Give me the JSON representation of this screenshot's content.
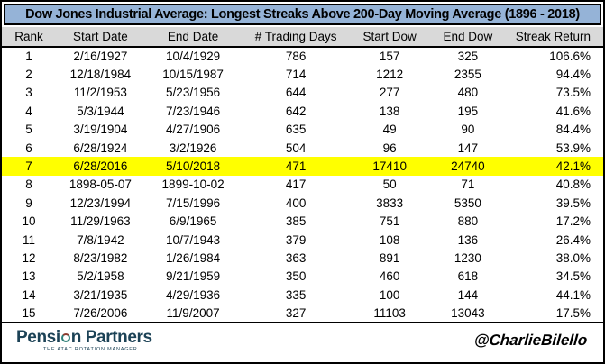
{
  "title": "Dow Jones Industrial Average: Longest Streaks Above 200-Day Moving Average (1896 - 2018)",
  "chart_data": {
    "type": "table",
    "title": "Dow Jones Industrial Average: Longest Streaks Above 200-Day Moving Average (1896 - 2018)",
    "columns": [
      "Rank",
      "Start Date",
      "End Date",
      "# Trading Days",
      "Start Dow",
      "End Dow",
      "Streak Return"
    ],
    "rows": [
      [
        "1",
        "2/16/1927",
        "10/4/1929",
        "786",
        "157",
        "325",
        "106.6%"
      ],
      [
        "2",
        "12/18/1984",
        "10/15/1987",
        "714",
        "1212",
        "2355",
        "94.4%"
      ],
      [
        "3",
        "11/2/1953",
        "5/23/1956",
        "644",
        "277",
        "480",
        "73.5%"
      ],
      [
        "4",
        "5/3/1944",
        "7/23/1946",
        "642",
        "138",
        "195",
        "41.6%"
      ],
      [
        "5",
        "3/19/1904",
        "4/27/1906",
        "635",
        "49",
        "90",
        "84.4%"
      ],
      [
        "6",
        "6/28/1924",
        "3/2/1926",
        "504",
        "96",
        "147",
        "53.9%"
      ],
      [
        "7",
        "6/28/2016",
        "5/10/2018",
        "471",
        "17410",
        "24740",
        "42.1%"
      ],
      [
        "8",
        "1898-05-07",
        "1899-10-02",
        "417",
        "50",
        "71",
        "40.8%"
      ],
      [
        "9",
        "12/23/1994",
        "7/15/1996",
        "400",
        "3833",
        "5350",
        "39.5%"
      ],
      [
        "10",
        "11/29/1963",
        "6/9/1965",
        "385",
        "751",
        "880",
        "17.2%"
      ],
      [
        "11",
        "7/8/1942",
        "10/7/1943",
        "379",
        "108",
        "136",
        "26.4%"
      ],
      [
        "12",
        "8/23/1982",
        "1/26/1984",
        "363",
        "891",
        "1230",
        "38.0%"
      ],
      [
        "13",
        "5/2/1958",
        "9/21/1959",
        "350",
        "460",
        "618",
        "34.5%"
      ],
      [
        "14",
        "3/21/1935",
        "4/29/1936",
        "335",
        "100",
        "144",
        "44.1%"
      ],
      [
        "15",
        "7/26/2006",
        "11/9/2007",
        "327",
        "11103",
        "13043",
        "17.5%"
      ]
    ],
    "highlighted_rank": "7"
  },
  "colors": {
    "title_bg": "#95B3D7",
    "header_bg": "#D9D9D9",
    "highlight": "#FFFF00",
    "logo": "#1C4256"
  },
  "footer": {
    "logo_text_before_globe": "Pensi",
    "logo_text_after_globe": "n Partners",
    "logo_tagline": "THE ATAC ROTATION MANAGER",
    "handle": "@CharlieBilello"
  }
}
